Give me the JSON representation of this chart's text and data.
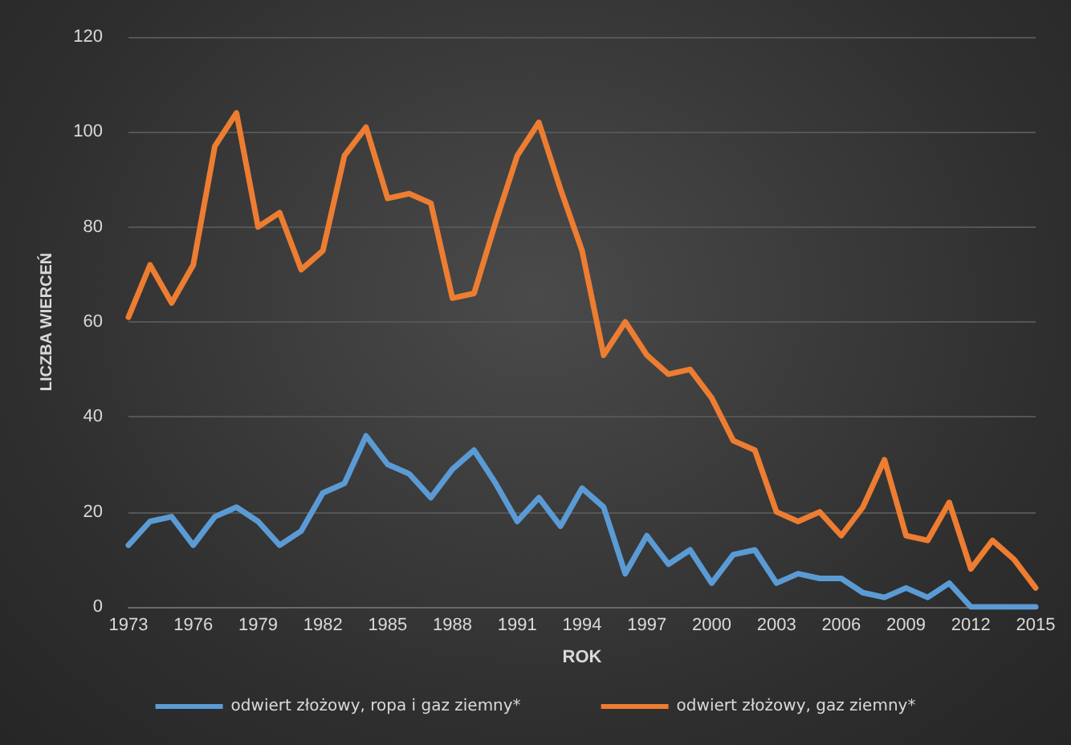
{
  "chart_data": {
    "type": "line",
    "xlabel": "ROK",
    "ylabel": "LICZBA WIERCEŃ",
    "categories": [
      "1973",
      null,
      null,
      "1976",
      null,
      null,
      "1979",
      null,
      null,
      "1982",
      null,
      null,
      "1985",
      null,
      null,
      "1988",
      null,
      null,
      "1991",
      null,
      null,
      "1994",
      null,
      null,
      "1997",
      null,
      null,
      "2000",
      null,
      null,
      "2003",
      null,
      null,
      "2006",
      null,
      null,
      "2009",
      null,
      null,
      "2012",
      null,
      null,
      "2015"
    ],
    "series": [
      {
        "name": "odwiert złożowy, ropa i gaz ziemny*",
        "color": "#5b9bd5",
        "values": [
          13,
          18,
          19,
          13,
          19,
          21,
          18,
          13,
          16,
          24,
          26,
          36,
          30,
          28,
          23,
          29,
          33,
          26,
          18,
          23,
          17,
          25,
          21,
          7,
          15,
          9,
          12,
          5,
          11,
          12,
          5,
          7,
          6,
          6,
          3,
          2,
          4,
          2,
          5,
          0,
          0,
          0,
          0
        ]
      },
      {
        "name": "odwiert złożowy, gaz ziemny*",
        "color": "#ed7d31",
        "values": [
          61,
          72,
          64,
          72,
          97,
          104,
          80,
          83,
          71,
          75,
          95,
          101,
          86,
          87,
          85,
          65,
          66,
          81,
          95,
          102,
          88,
          75,
          53,
          60,
          53,
          49,
          50,
          44,
          35,
          33,
          20,
          18,
          20,
          15,
          21,
          31,
          15,
          14,
          22,
          8,
          14,
          10,
          4
        ]
      }
    ],
    "ylim": [
      0,
      120
    ],
    "yticks": [
      0,
      20,
      40,
      60,
      80,
      100,
      120
    ],
    "grid": "y",
    "legend": "bottom",
    "marker": "none",
    "line_style": "solid"
  }
}
